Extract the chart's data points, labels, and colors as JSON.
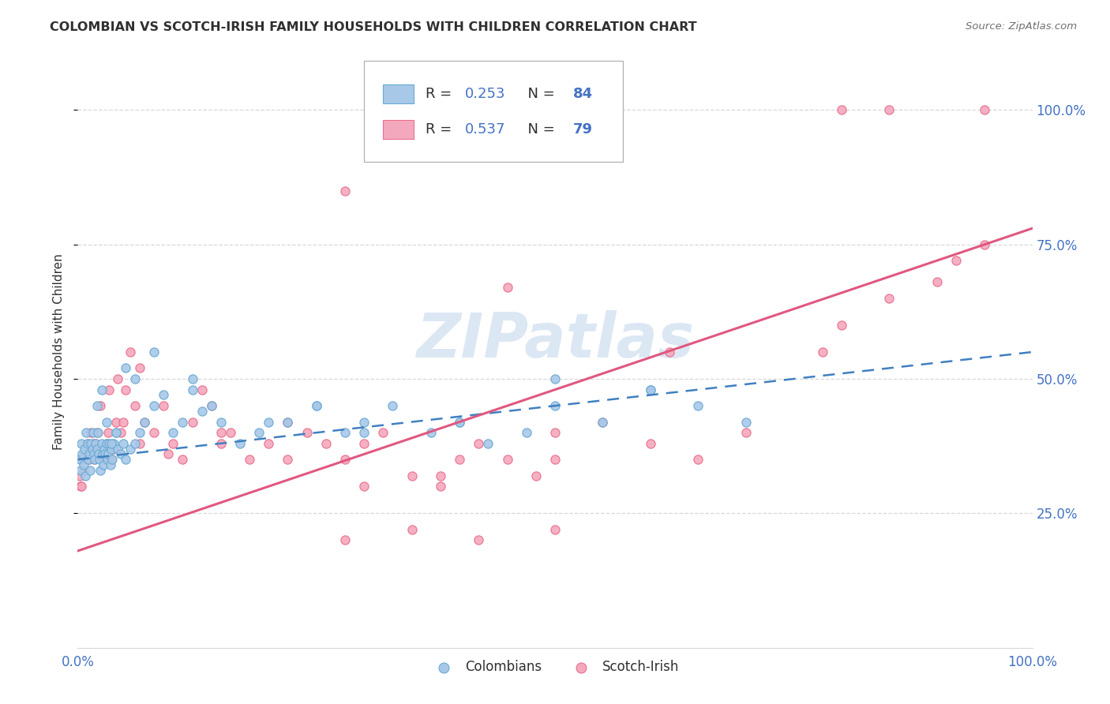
{
  "title": "COLOMBIAN VS SCOTCH-IRISH FAMILY HOUSEHOLDS WITH CHILDREN CORRELATION CHART",
  "source": "Source: ZipAtlas.com",
  "ylabel": "Family Households with Children",
  "watermark": "ZIPatlas",
  "legend_colombians": "Colombians",
  "legend_scotch_irish": "Scotch-Irish",
  "blue_scatter_color": "#a8c8e8",
  "blue_edge_color": "#6aaad4",
  "pink_scatter_color": "#f4a8be",
  "pink_edge_color": "#e8708c",
  "blue_line_color": "#4080c0",
  "pink_line_color": "#e05880",
  "R_blue": 0.253,
  "N_blue": 84,
  "R_pink": 0.537,
  "N_pink": 79,
  "colombians_x": [
    0.2,
    0.3,
    0.4,
    0.5,
    0.6,
    0.7,
    0.8,
    0.9,
    1.0,
    1.1,
    1.2,
    1.3,
    1.4,
    1.5,
    1.6,
    1.7,
    1.8,
    1.9,
    2.0,
    2.1,
    2.2,
    2.3,
    2.4,
    2.5,
    2.6,
    2.7,
    2.8,
    2.9,
    3.0,
    3.1,
    3.2,
    3.3,
    3.4,
    3.5,
    3.6,
    3.8,
    4.0,
    4.2,
    4.5,
    4.8,
    5.0,
    5.5,
    6.0,
    6.5,
    7.0,
    8.0,
    9.0,
    10.0,
    11.0,
    12.0,
    13.0,
    14.0,
    15.0,
    17.0,
    19.0,
    22.0,
    25.0,
    28.0,
    30.0,
    33.0,
    37.0,
    40.0,
    43.0,
    47.0,
    50.0,
    55.0,
    60.0,
    65.0,
    70.0,
    2.0,
    2.5,
    3.0,
    3.5,
    4.0,
    5.0,
    6.0,
    8.0,
    12.0,
    20.0,
    25.0,
    30.0,
    40.0,
    50.0,
    60.0
  ],
  "colombians_y": [
    35,
    33,
    38,
    36,
    34,
    37,
    32,
    40,
    38,
    35,
    36,
    33,
    38,
    37,
    40,
    36,
    35,
    38,
    37,
    40,
    36,
    35,
    33,
    38,
    36,
    34,
    37,
    36,
    38,
    35,
    36,
    38,
    34,
    37,
    35,
    38,
    40,
    37,
    36,
    38,
    35,
    37,
    38,
    40,
    42,
    45,
    47,
    40,
    42,
    50,
    44,
    45,
    42,
    38,
    40,
    42,
    45,
    40,
    42,
    45,
    40,
    42,
    38,
    40,
    45,
    42,
    48,
    45,
    42,
    45,
    48,
    42,
    38,
    40,
    52,
    50,
    55,
    48,
    42,
    45,
    40,
    42,
    50,
    48
  ],
  "scotch_irish_x": [
    0.2,
    0.3,
    0.5,
    0.6,
    0.8,
    1.0,
    1.2,
    1.4,
    1.5,
    1.7,
    1.9,
    2.0,
    2.2,
    2.5,
    2.8,
    3.0,
    3.2,
    3.5,
    3.8,
    4.0,
    4.2,
    4.5,
    5.0,
    5.5,
    6.0,
    6.5,
    7.0,
    8.0,
    9.0,
    10.0,
    11.0,
    12.0,
    13.0,
    14.0,
    15.0,
    16.0,
    18.0,
    20.0,
    22.0,
    24.0,
    26.0,
    28.0,
    30.0,
    32.0,
    35.0,
    38.0,
    40.0,
    42.0,
    45.0,
    48.0,
    50.0,
    55.0,
    60.0,
    65.0,
    70.0,
    78.0,
    80.0,
    85.0,
    90.0,
    92.0,
    95.0,
    0.4,
    0.9,
    1.6,
    2.4,
    3.3,
    4.8,
    6.5,
    9.5,
    15.0,
    22.0,
    30.0,
    38.0,
    50.0,
    62.0,
    28.0,
    35.0,
    42.0,
    50.0
  ],
  "scotch_irish_y": [
    32,
    30,
    35,
    33,
    36,
    38,
    35,
    40,
    37,
    35,
    38,
    40,
    37,
    36,
    35,
    38,
    40,
    35,
    37,
    42,
    50,
    40,
    48,
    55,
    45,
    52,
    42,
    40,
    45,
    38,
    35,
    42,
    48,
    45,
    38,
    40,
    35,
    38,
    42,
    40,
    38,
    35,
    38,
    40,
    32,
    30,
    35,
    38,
    35,
    32,
    40,
    42,
    38,
    35,
    40,
    55,
    60,
    65,
    68,
    72,
    75,
    30,
    35,
    38,
    45,
    48,
    42,
    38,
    36,
    40,
    35,
    30,
    32,
    35,
    55,
    20,
    22,
    20,
    22
  ],
  "scotch_irish_outliers_x": [
    28.0,
    45.0,
    80.0,
    85.0,
    95.0
  ],
  "scotch_irish_outliers_y": [
    85.0,
    67.0,
    100.0,
    100.0,
    100.0
  ],
  "pink_line_x0": 0,
  "pink_line_y0": 18,
  "pink_line_x1": 100,
  "pink_line_y1": 78,
  "blue_line_x0": 0,
  "blue_line_y0": 35,
  "blue_line_x1": 100,
  "blue_line_y1": 55,
  "xlim": [
    0,
    100
  ],
  "ylim": [
    0,
    110
  ],
  "yticks": [
    25,
    50,
    75,
    100
  ],
  "ytick_labels": [
    "25.0%",
    "50.0%",
    "75.0%",
    "100.0%"
  ],
  "background_color": "#ffffff",
  "grid_color": "#d8d8d8",
  "watermark_color": "#c5d8ee",
  "title_color": "#303030",
  "source_color": "#707070",
  "axis_label_color": "#4472c4"
}
